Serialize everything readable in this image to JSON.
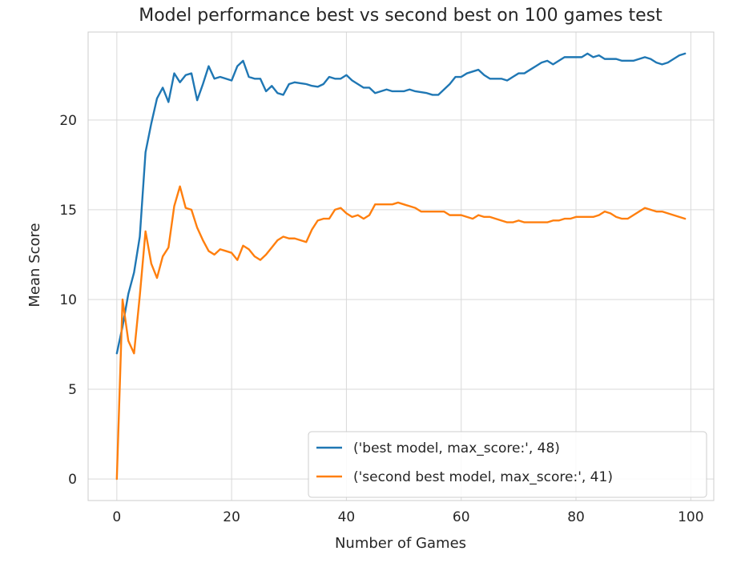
{
  "chart_data": {
    "type": "line",
    "title": "Model performance best vs second best on 100 games test",
    "xlabel": "Number of Games",
    "ylabel": "Mean Score",
    "xlim": [
      -5,
      104
    ],
    "ylim": [
      -1.2,
      24.9
    ],
    "xticks": [
      0,
      20,
      40,
      60,
      80,
      100
    ],
    "yticks": [
      0,
      5,
      10,
      15,
      20
    ],
    "grid": true,
    "legend_position": "lower-right",
    "series": [
      {
        "name": "('best model, max_score:', 48)",
        "color": "#1f77b4",
        "values": [
          7.0,
          8.5,
          10.3,
          11.5,
          13.5,
          18.2,
          19.8,
          21.2,
          21.8,
          21.0,
          22.6,
          22.1,
          22.5,
          22.6,
          21.1,
          22.0,
          23.0,
          22.3,
          22.4,
          22.3,
          22.2,
          23.0,
          23.3,
          22.4,
          22.3,
          22.3,
          21.6,
          21.9,
          21.5,
          21.4,
          22.0,
          22.1,
          22.05,
          22.0,
          21.9,
          21.85,
          22.0,
          22.4,
          22.3,
          22.3,
          22.5,
          22.2,
          22.0,
          21.8,
          21.8,
          21.5,
          21.6,
          21.7,
          21.6,
          21.6,
          21.6,
          21.7,
          21.6,
          21.55,
          21.5,
          21.4,
          21.4,
          21.7,
          22.0,
          22.4,
          22.4,
          22.6,
          22.7,
          22.8,
          22.5,
          22.3,
          22.3,
          22.3,
          22.2,
          22.4,
          22.6,
          22.6,
          22.8,
          23.0,
          23.2,
          23.3,
          23.1,
          23.3,
          23.5,
          23.5,
          23.5,
          23.5,
          23.7,
          23.5,
          23.6,
          23.4,
          23.4,
          23.4,
          23.3,
          23.3,
          23.3,
          23.4,
          23.5,
          23.4,
          23.2,
          23.1,
          23.2,
          23.4,
          23.6,
          23.7
        ]
      },
      {
        "name": "('second best model, max_score:', 41)",
        "color": "#ff7f0e",
        "values": [
          0.0,
          10.0,
          7.7,
          7.0,
          10.2,
          13.8,
          12.0,
          11.2,
          12.4,
          12.9,
          15.2,
          16.3,
          15.1,
          15.0,
          14.0,
          13.3,
          12.7,
          12.5,
          12.8,
          12.7,
          12.6,
          12.2,
          13.0,
          12.8,
          12.4,
          12.2,
          12.5,
          12.9,
          13.3,
          13.5,
          13.4,
          13.4,
          13.3,
          13.2,
          13.9,
          14.4,
          14.5,
          14.5,
          15.0,
          15.1,
          14.8,
          14.6,
          14.7,
          14.5,
          14.7,
          15.3,
          15.3,
          15.3,
          15.3,
          15.4,
          15.3,
          15.2,
          15.1,
          14.9,
          14.9,
          14.9,
          14.9,
          14.9,
          14.7,
          14.7,
          14.7,
          14.6,
          14.5,
          14.7,
          14.6,
          14.6,
          14.5,
          14.4,
          14.3,
          14.3,
          14.4,
          14.3,
          14.3,
          14.3,
          14.3,
          14.3,
          14.4,
          14.4,
          14.5,
          14.5,
          14.6,
          14.6,
          14.6,
          14.6,
          14.7,
          14.9,
          14.8,
          14.6,
          14.5,
          14.5,
          14.7,
          14.9,
          15.1,
          15.0,
          14.9,
          14.9,
          14.8,
          14.7,
          14.6,
          14.5
        ]
      }
    ]
  }
}
